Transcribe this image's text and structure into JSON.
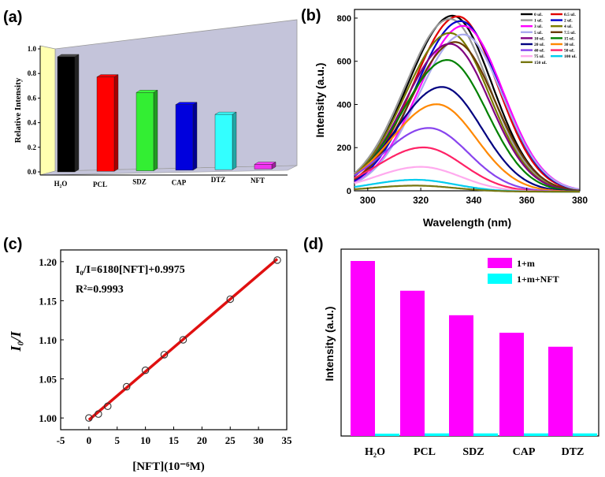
{
  "colors": {
    "bar_3d": [
      "#000000",
      "#ff0000",
      "#33ee33",
      "#0000dd",
      "#33ffff",
      "#ee33ee"
    ],
    "wall_left": "#ffffb0",
    "wall_back": "#c4c4da",
    "fit_line": "#e01010",
    "d_series_1": "#ff00ff",
    "d_series_2": "#00ffff"
  },
  "chart_data": [
    {
      "panel": "(a)",
      "type": "bar",
      "ylabel": "Relative Intensity",
      "ylim": [
        0.0,
        1.0
      ],
      "yticks": [
        "0.0",
        "0.2",
        "0.4",
        "0.6",
        "0.8",
        "1.0"
      ],
      "categories": [
        "H₂O",
        "PCL",
        "SDZ",
        "CAP",
        "DTZ",
        "NFT"
      ],
      "values": [
        1.0,
        0.82,
        0.68,
        0.57,
        0.48,
        0.03
      ]
    },
    {
      "panel": "(b)",
      "type": "line",
      "xlabel": "Wavelength (nm)",
      "ylabel": "Intensity (a.u.)",
      "xlim": [
        295,
        380
      ],
      "ylim": [
        0,
        840
      ],
      "xticks": [
        "300",
        "320",
        "340",
        "360",
        "380"
      ],
      "yticks": [
        "0",
        "200",
        "400",
        "600",
        "800"
      ],
      "series": [
        {
          "name": "0 uL",
          "color": "#000000",
          "peak_x": 332,
          "peak_y": 815
        },
        {
          "name": "0.5 uL",
          "color": "#e00000",
          "peak_x": 334,
          "peak_y": 812
        },
        {
          "name": "1 uL",
          "color": "#999999",
          "peak_x": 331,
          "peak_y": 800
        },
        {
          "name": "2 uL",
          "color": "#0000cc",
          "peak_x": 335,
          "peak_y": 790
        },
        {
          "name": "3 uL",
          "color": "#ff00ff",
          "peak_x": 336,
          "peak_y": 768
        },
        {
          "name": "4 uL",
          "color": "#7a7a00",
          "peak_x": 331,
          "peak_y": 735
        },
        {
          "name": "5 uL",
          "color": "#aaaaee",
          "peak_x": 336,
          "peak_y": 728
        },
        {
          "name": "7.5 uL",
          "color": "#6a3a00",
          "peak_x": 333,
          "peak_y": 693
        },
        {
          "name": "10 uL",
          "color": "#800080",
          "peak_x": 331,
          "peak_y": 685
        },
        {
          "name": "15 uL",
          "color": "#008000",
          "peak_x": 330,
          "peak_y": 610
        },
        {
          "name": "20 uL",
          "color": "#000080",
          "peak_x": 328,
          "peak_y": 485
        },
        {
          "name": "30 uL",
          "color": "#ff8800",
          "peak_x": 326,
          "peak_y": 405
        },
        {
          "name": "40 uL",
          "color": "#8844ee",
          "peak_x": 323,
          "peak_y": 295
        },
        {
          "name": "50 uL",
          "color": "#ff2266",
          "peak_x": 321,
          "peak_y": 205
        },
        {
          "name": "75 uL",
          "color": "#ffaaee",
          "peak_x": 320,
          "peak_y": 115
        },
        {
          "name": "100 uL",
          "color": "#00ccee",
          "peak_x": 318,
          "peak_y": 55
        },
        {
          "name": "150 uL",
          "color": "#777711",
          "peak_x": 318,
          "peak_y": 28
        }
      ]
    },
    {
      "panel": "(c)",
      "type": "scatter",
      "xlabel": "[NFT](10⁻⁶M)",
      "ylabel": "I₀/I",
      "xlim": [
        -5,
        35
      ],
      "ylim": [
        0.985,
        1.215
      ],
      "xticks": [
        "-5",
        "0",
        "5",
        "10",
        "15",
        "20",
        "25",
        "30",
        "35"
      ],
      "yticks": [
        "1.00",
        "1.05",
        "1.10",
        "1.15",
        "1.20"
      ],
      "x": [
        0,
        1.67,
        3.33,
        6.67,
        10.0,
        13.33,
        16.67,
        25.0,
        33.33
      ],
      "y": [
        1.0,
        1.005,
        1.015,
        1.04,
        1.061,
        1.081,
        1.1,
        1.152,
        1.202
      ],
      "fit": {
        "slope": 0.00618,
        "intercept": 0.9975
      },
      "annotations": {
        "equation": "I₀/I=6180[NFT]+0.9975",
        "r2": "R²=0.9993"
      }
    },
    {
      "panel": "(d)",
      "type": "bar",
      "ylabel": "Intensity (a.u.)",
      "categories": [
        "H₂O",
        "PCL",
        "SDZ",
        "CAP",
        "DTZ"
      ],
      "series": [
        {
          "name": "1+m",
          "values": [
            1.0,
            0.83,
            0.69,
            0.59,
            0.51
          ]
        },
        {
          "name": "1+m+NFT",
          "values": [
            0.0,
            0.015,
            0.015,
            0.015,
            0.015
          ]
        }
      ]
    }
  ]
}
